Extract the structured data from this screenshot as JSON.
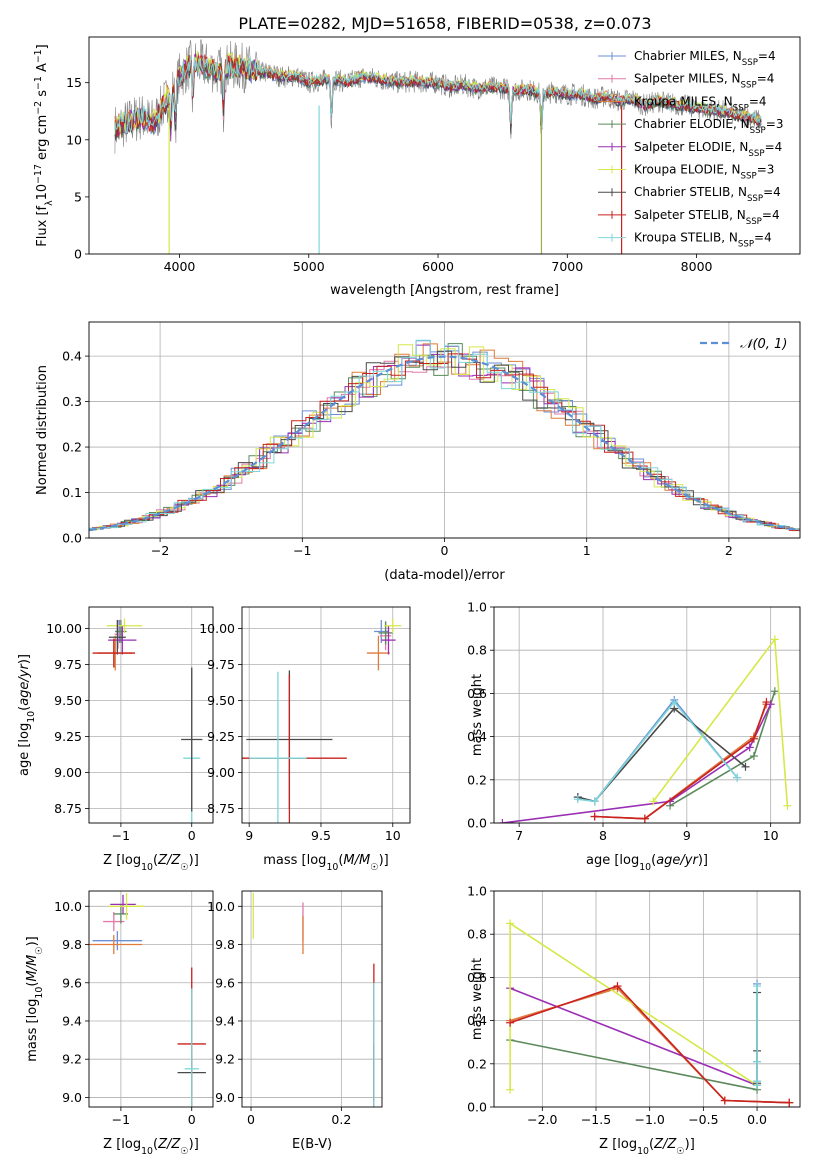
{
  "figure": {
    "title": "PLATE=0282, MJD=51658, FIBERID=0538, z=0.073"
  },
  "models": [
    {
      "name": "Chabrier MILES",
      "nssp": "4",
      "color": "#6c8fd6"
    },
    {
      "name": "Salpeter MILES",
      "nssp": "4",
      "color": "#e07aa8"
    },
    {
      "name": "Kroupa MILES",
      "nssp": "4",
      "color": "#e07b39"
    },
    {
      "name": "Chabrier ELODIE",
      "nssp": "3",
      "color": "#5c8a5c"
    },
    {
      "name": "Salpeter ELODIE",
      "nssp": "4",
      "color": "#9a2fb4"
    },
    {
      "name": "Kroupa ELODIE",
      "nssp": "3",
      "color": "#d6e84a"
    },
    {
      "name": "Chabrier STELIB",
      "nssp": "4",
      "color": "#4a4a4a"
    },
    {
      "name": "Salpeter STELIB",
      "nssp": "4",
      "color": "#c8221e"
    },
    {
      "name": "Kroupa STELIB",
      "nssp": "4",
      "color": "#7fd6d8"
    }
  ],
  "chart_data": [
    {
      "id": "spectrum",
      "type": "line",
      "xlabel": "wavelength [Angstrom, rest frame]",
      "ylabel": "Flux [f_λ 10^-17 erg cm^-2 s^-1 A^-1]",
      "xlim": [
        3300,
        8800
      ],
      "ylim": [
        0,
        19
      ],
      "xticks": [
        4000,
        5000,
        6000,
        7000,
        8000
      ],
      "yticks": [
        0,
        5,
        10,
        15
      ],
      "data_color": "#808080",
      "x": [
        3500,
        3600,
        3700,
        3800,
        3900,
        4000,
        4100,
        4200,
        4300,
        4400,
        4500,
        4600,
        4700,
        4800,
        4900,
        5000,
        5100,
        5200,
        5300,
        5400,
        5500,
        5600,
        5700,
        5800,
        5900,
        6000,
        6100,
        6200,
        6300,
        6400,
        6500,
        6600,
        6700,
        6800,
        6900,
        7000,
        7100,
        7200,
        7300,
        7400,
        7500,
        7600,
        7700,
        7800,
        7900,
        8000,
        8100,
        8200,
        8300,
        8400,
        8500
      ],
      "model": [
        11.0,
        11.5,
        12.0,
        11.5,
        13.5,
        15.5,
        16.8,
        16.5,
        16.0,
        16.5,
        16.3,
        16.0,
        15.8,
        15.5,
        15.6,
        15.0,
        15.2,
        15.3,
        15.0,
        15.5,
        15.4,
        15.2,
        15.0,
        15.1,
        15.0,
        15.0,
        14.6,
        14.8,
        14.5,
        14.6,
        14.5,
        14.3,
        14.4,
        14.0,
        14.2,
        14.0,
        14.0,
        13.6,
        13.8,
        13.4,
        13.6,
        13.0,
        13.4,
        13.2,
        13.0,
        12.8,
        12.6,
        12.5,
        12.2,
        12.0,
        11.6
      ],
      "absorption_lines": [
        3934,
        3969,
        4102,
        4340,
        5175,
        6563,
        6800
      ],
      "spikes_down": [
        {
          "x": 3920,
          "y": 0
        },
        {
          "x": 5080,
          "y": 0
        },
        {
          "x": 6800,
          "y": 0
        },
        {
          "x": 7420,
          "y": 0
        }
      ],
      "legend_position": "upper right"
    },
    {
      "id": "residuals",
      "type": "histogram",
      "xlabel": "(data-model)/error",
      "ylabel": "Normed distribution",
      "xlim": [
        -2.5,
        2.5
      ],
      "ylim": [
        0,
        0.475
      ],
      "xticks": [
        -2,
        -1,
        0,
        1,
        2
      ],
      "yticks": [
        0.0,
        0.1,
        0.2,
        0.3,
        0.4
      ],
      "grid": true,
      "bin_width": 0.1,
      "reference_curve": {
        "label": "𝒩(0, 1)",
        "mean": 0,
        "sigma": 1,
        "color": "#5b8fd6"
      },
      "legend_position": "upper right"
    },
    {
      "id": "age_vs_z",
      "type": "errorbar",
      "xlabel": "Z [log10(Z/Z☉)]",
      "ylabel": "age [log10(age/yr)]",
      "xlim": [
        -1.45,
        0.3
      ],
      "ylim": [
        8.65,
        10.15
      ],
      "xticks": [
        -1,
        0
      ],
      "yticks": [
        8.75,
        9.0,
        9.25,
        9.5,
        9.75,
        10.0
      ],
      "grid": true,
      "points": [
        {
          "model": 0,
          "x": -1.02,
          "y": 9.98,
          "xerr": 0.06,
          "yerr": 0.08
        },
        {
          "model": 1,
          "x": -1.04,
          "y": 9.96,
          "xerr": 0.05,
          "yerr": 0.1
        },
        {
          "model": 2,
          "x": -1.08,
          "y": 9.83,
          "xerr": 0.25,
          "yerr": 0.12
        },
        {
          "model": 3,
          "x": -1.0,
          "y": 9.98,
          "xerr": 0.08,
          "yerr": 0.08
        },
        {
          "model": 4,
          "x": -0.98,
          "y": 9.92,
          "xerr": 0.2,
          "yerr": 0.1
        },
        {
          "model": 5,
          "x": -0.95,
          "y": 10.02,
          "xerr": 0.25,
          "yerr": 0.05
        },
        {
          "model": 6,
          "x": -1.05,
          "y": 9.94,
          "xerr": 0.12,
          "yerr": 0.12
        },
        {
          "model": 7,
          "x": -1.1,
          "y": 9.83,
          "xerr": 0.3,
          "yerr": 0.1
        },
        {
          "model": 8,
          "x": 0.0,
          "y": 9.1,
          "xerr": 0.12,
          "yerr": 0.6
        },
        {
          "model": 6,
          "x": 0.0,
          "y": 9.23,
          "xerr": 0.15,
          "yerr": 0.5
        }
      ]
    },
    {
      "id": "age_vs_mass",
      "type": "errorbar",
      "xlabel": "mass [log10(M/M☉)]",
      "ylabel": "",
      "xlim": [
        8.95,
        10.12
      ],
      "ylim": [
        8.65,
        10.15
      ],
      "xticks": [
        9.0,
        9.5,
        10.0
      ],
      "yticks": [
        8.75,
        9.0,
        9.25,
        9.5,
        9.75,
        10.0
      ],
      "grid": true,
      "points": [
        {
          "model": 0,
          "x": 9.92,
          "y": 9.98,
          "xerr": 0.05,
          "yerr": 0.08
        },
        {
          "model": 1,
          "x": 9.95,
          "y": 9.95,
          "xerr": 0.04,
          "yerr": 0.1
        },
        {
          "model": 2,
          "x": 9.9,
          "y": 9.83,
          "xerr": 0.08,
          "yerr": 0.12
        },
        {
          "model": 3,
          "x": 9.95,
          "y": 9.97,
          "xerr": 0.05,
          "yerr": 0.08
        },
        {
          "model": 4,
          "x": 9.97,
          "y": 9.92,
          "xerr": 0.05,
          "yerr": 0.1
        },
        {
          "model": 5,
          "x": 10.0,
          "y": 10.02,
          "xerr": 0.06,
          "yerr": 0.05
        },
        {
          "model": 6,
          "x": 9.28,
          "y": 9.23,
          "xerr": 0.3,
          "yerr": 0.48
        },
        {
          "model": 7,
          "x": 9.28,
          "y": 9.1,
          "xerr": 0.4,
          "yerr": 0.58
        },
        {
          "model": 8,
          "x": 9.2,
          "y": 9.1,
          "xerr": 0.2,
          "yerr": 0.6
        }
      ]
    },
    {
      "id": "mass_weight_vs_age",
      "type": "line",
      "xlabel": "age [log10(age/yr)]",
      "ylabel": "mass weight",
      "xlim": [
        6.7,
        10.35
      ],
      "ylim": [
        0,
        1.0
      ],
      "xticks": [
        7,
        8,
        9,
        10
      ],
      "yticks": [
        0.0,
        0.2,
        0.4,
        0.6,
        0.8,
        1.0
      ],
      "grid": true,
      "series": [
        {
          "model": 0,
          "x": [
            7.7,
            7.9,
            8.85,
            9.6
          ],
          "y": [
            0.12,
            0.1,
            0.57,
            0.21
          ]
        },
        {
          "model": 1,
          "x": [
            7.9,
            8.5,
            9.8,
            9.95
          ],
          "y": [
            0.03,
            0.02,
            0.4,
            0.55
          ]
        },
        {
          "model": 2,
          "x": [
            7.9,
            8.5,
            9.8,
            9.95
          ],
          "y": [
            0.03,
            0.02,
            0.4,
            0.55
          ]
        },
        {
          "model": 3,
          "x": [
            8.8,
            9.8,
            10.05
          ],
          "y": [
            0.08,
            0.31,
            0.61
          ]
        },
        {
          "model": 4,
          "x": [
            6.8,
            8.8,
            9.75,
            10.0
          ],
          "y": [
            0.0,
            0.1,
            0.35,
            0.55
          ]
        },
        {
          "model": 5,
          "x": [
            8.6,
            10.05,
            10.2
          ],
          "y": [
            0.1,
            0.85,
            0.08
          ]
        },
        {
          "model": 6,
          "x": [
            7.7,
            7.9,
            8.85,
            9.7
          ],
          "y": [
            0.12,
            0.1,
            0.53,
            0.26
          ]
        },
        {
          "model": 7,
          "x": [
            7.9,
            8.5,
            9.8,
            9.95
          ],
          "y": [
            0.03,
            0.02,
            0.39,
            0.56
          ]
        },
        {
          "model": 8,
          "x": [
            7.7,
            7.9,
            8.85,
            9.6
          ],
          "y": [
            0.11,
            0.1,
            0.56,
            0.21
          ]
        }
      ]
    },
    {
      "id": "mass_vs_z",
      "type": "errorbar",
      "xlabel": "Z [log10(Z/Z☉)]",
      "ylabel": "mass [log10(M/M☉)]",
      "xlim": [
        -1.45,
        0.3
      ],
      "ylim": [
        8.95,
        10.08
      ],
      "xticks": [
        -1,
        0
      ],
      "yticks": [
        9.0,
        9.2,
        9.4,
        9.6,
        9.8,
        10.0
      ],
      "grid": true,
      "points": [
        {
          "model": 0,
          "x": -1.05,
          "y": 9.82,
          "xerr": 0.35,
          "yerr": 0.05
        },
        {
          "model": 1,
          "x": -1.1,
          "y": 9.92,
          "xerr": 0.15,
          "yerr": 0.05
        },
        {
          "model": 2,
          "x": -1.1,
          "y": 9.8,
          "xerr": 0.4,
          "yerr": 0.05
        },
        {
          "model": 3,
          "x": -1.0,
          "y": 9.96,
          "xerr": 0.1,
          "yerr": 0.05
        },
        {
          "model": 4,
          "x": -0.97,
          "y": 10.01,
          "xerr": 0.18,
          "yerr": 0.05
        },
        {
          "model": 5,
          "x": -0.92,
          "y": 10.0,
          "xerr": 0.25,
          "yerr": 0.07
        },
        {
          "model": 6,
          "x": 0.0,
          "y": 9.13,
          "xerr": 0.2,
          "yerr": 0.12
        },
        {
          "model": 7,
          "x": 0.0,
          "y": 9.28,
          "xerr": 0.2,
          "yerr": 0.4
        },
        {
          "model": 8,
          "x": 0.0,
          "y": 9.15,
          "xerr": 0.1,
          "yerr": 0.42
        }
      ]
    },
    {
      "id": "mass_vs_ebv",
      "type": "errorbar",
      "xlabel": "E(B-V)",
      "ylabel": "",
      "xlim": [
        -0.02,
        0.29
      ],
      "ylim": [
        8.95,
        10.08
      ],
      "xticks": [
        0.0,
        0.2
      ],
      "yticks": [
        9.0,
        9.2,
        9.4,
        9.6,
        9.8,
        10.0
      ],
      "grid": true,
      "points": [
        {
          "model": 5,
          "x": 0.005,
          "y": 9.95,
          "xerr": 0.0,
          "yerr": 0.12
        },
        {
          "model": 1,
          "x": 0.115,
          "y": 9.92,
          "xerr": 0.0,
          "yerr": 0.1
        },
        {
          "model": 2,
          "x": 0.115,
          "y": 9.85,
          "xerr": 0.0,
          "yerr": 0.1
        },
        {
          "model": 6,
          "x": 0.272,
          "y": 9.13,
          "xerr": 0.0,
          "yerr": 0.15
        },
        {
          "model": 7,
          "x": 0.272,
          "y": 9.3,
          "xerr": 0.0,
          "yerr": 0.4
        },
        {
          "model": 8,
          "x": 0.272,
          "y": 9.2,
          "xerr": 0.0,
          "yerr": 0.4
        }
      ]
    },
    {
      "id": "mass_weight_vs_z",
      "type": "line",
      "xlabel": "Z [log10(Z/Z☉)]",
      "ylabel": "mass weight",
      "xlim": [
        -2.45,
        0.4
      ],
      "ylim": [
        0,
        1.0
      ],
      "xticks": [
        -2.0,
        -1.5,
        -1.0,
        -0.5,
        0.0
      ],
      "yticks": [
        0.0,
        0.2,
        0.4,
        0.6,
        0.8,
        1.0
      ],
      "grid": true,
      "series": [
        {
          "model": 0,
          "x": [
            0.0,
            0.0,
            0.0,
            0.0
          ],
          "y": [
            0.1,
            0.12,
            0.57,
            0.21
          ]
        },
        {
          "model": 1,
          "x": [
            -2.3,
            -1.3,
            -0.3,
            0.3
          ],
          "y": [
            0.4,
            0.55,
            0.03,
            0.02
          ]
        },
        {
          "model": 2,
          "x": [
            -2.3,
            -1.3,
            -0.3,
            0.3
          ],
          "y": [
            0.4,
            0.55,
            0.03,
            0.02
          ]
        },
        {
          "model": 3,
          "x": [
            -2.3,
            0.0
          ],
          "y": [
            0.31,
            0.08
          ]
        },
        {
          "model": 4,
          "x": [
            -2.3,
            0.0
          ],
          "y": [
            0.55,
            0.1
          ]
        },
        {
          "model": 5,
          "x": [
            -2.3,
            -2.3,
            0.0
          ],
          "y": [
            0.08,
            0.85,
            0.1
          ]
        },
        {
          "model": 6,
          "x": [
            0.0,
            0.0,
            0.0,
            0.0
          ],
          "y": [
            0.1,
            0.11,
            0.53,
            0.26
          ]
        },
        {
          "model": 7,
          "x": [
            -2.3,
            -1.3,
            -0.3,
            0.3
          ],
          "y": [
            0.39,
            0.56,
            0.03,
            0.02
          ]
        },
        {
          "model": 8,
          "x": [
            0.0,
            0.0,
            0.0,
            0.0
          ],
          "y": [
            0.1,
            0.12,
            0.56,
            0.21
          ]
        }
      ]
    }
  ]
}
